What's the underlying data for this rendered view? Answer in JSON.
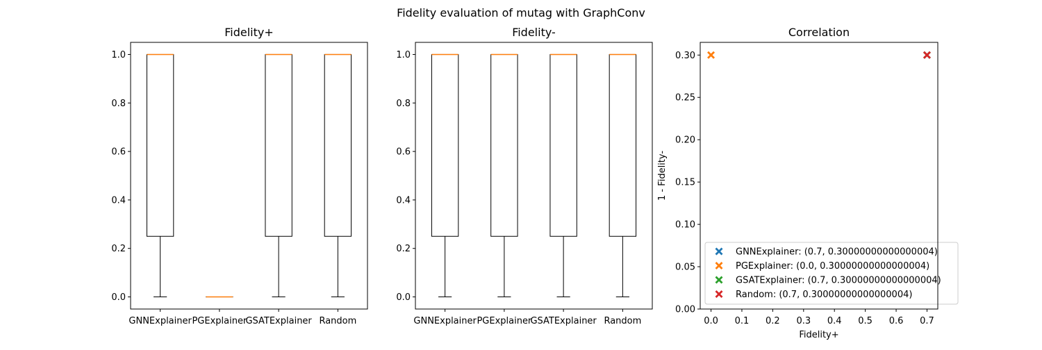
{
  "figure": {
    "suptitle": "Fidelity evaluation of mutag with GraphConv"
  },
  "chart_data": [
    {
      "type": "box",
      "title": "Fidelity+",
      "xlabel": "",
      "ylabel": "",
      "ylim": [
        -0.05,
        1.05
      ],
      "yticks": [
        0.0,
        0.2,
        0.4,
        0.6,
        0.8,
        1.0
      ],
      "ytick_labels": [
        "0.0",
        "0.2",
        "0.4",
        "0.6",
        "0.8",
        "1.0"
      ],
      "categories": [
        "GNNExplainer",
        "PGExplainer",
        "GSATExplainer",
        "Random"
      ],
      "boxes": [
        {
          "min": 0.0,
          "q1": 0.25,
          "median": 1.0,
          "q3": 1.0,
          "max": 1.0
        },
        {
          "min": 0.0,
          "q1": 0.0,
          "median": 0.0,
          "q3": 0.0,
          "max": 0.0
        },
        {
          "min": 0.0,
          "q1": 0.25,
          "median": 1.0,
          "q3": 1.0,
          "max": 1.0
        },
        {
          "min": 0.0,
          "q1": 0.25,
          "median": 1.0,
          "q3": 1.0,
          "max": 1.0
        }
      ]
    },
    {
      "type": "box",
      "title": "Fidelity-",
      "xlabel": "",
      "ylabel": "",
      "ylim": [
        -0.05,
        1.05
      ],
      "yticks": [
        0.0,
        0.2,
        0.4,
        0.6,
        0.8,
        1.0
      ],
      "ytick_labels": [
        "0.0",
        "0.2",
        "0.4",
        "0.6",
        "0.8",
        "1.0"
      ],
      "categories": [
        "GNNExplainer",
        "PGExplainer",
        "GSATExplainer",
        "Random"
      ],
      "boxes": [
        {
          "min": 0.0,
          "q1": 0.25,
          "median": 1.0,
          "q3": 1.0,
          "max": 1.0
        },
        {
          "min": 0.0,
          "q1": 0.25,
          "median": 1.0,
          "q3": 1.0,
          "max": 1.0
        },
        {
          "min": 0.0,
          "q1": 0.25,
          "median": 1.0,
          "q3": 1.0,
          "max": 1.0
        },
        {
          "min": 0.0,
          "q1": 0.25,
          "median": 1.0,
          "q3": 1.0,
          "max": 1.0
        }
      ]
    },
    {
      "type": "scatter",
      "title": "Correlation",
      "xlabel": "Fidelity+",
      "ylabel": "1 - Fidelity-",
      "xlim": [
        -0.035,
        0.735
      ],
      "ylim": [
        0.0,
        0.315
      ],
      "xticks": [
        0.0,
        0.1,
        0.2,
        0.3,
        0.4,
        0.5,
        0.6,
        0.7
      ],
      "xtick_labels": [
        "0.0",
        "0.1",
        "0.2",
        "0.3",
        "0.4",
        "0.5",
        "0.6",
        "0.7"
      ],
      "yticks": [
        0.0,
        0.05,
        0.1,
        0.15,
        0.2,
        0.25,
        0.3
      ],
      "ytick_labels": [
        "0.00",
        "0.05",
        "0.10",
        "0.15",
        "0.20",
        "0.25",
        "0.30"
      ],
      "marker": "X",
      "legend_position": "lower-right",
      "series": [
        {
          "name": "GNNExplainer: (0.7, 0.30000000000000004)",
          "x": 0.7,
          "y": 0.3,
          "color": "#1f77b4"
        },
        {
          "name": "PGExplainer: (0.0, 0.30000000000000004)",
          "x": 0.0,
          "y": 0.3,
          "color": "#ff7f0e"
        },
        {
          "name": "GSATExplainer: (0.7, 0.30000000000000004)",
          "x": 0.7,
          "y": 0.3,
          "color": "#2ca02c"
        },
        {
          "name": "Random: (0.7, 0.30000000000000004)",
          "x": 0.7,
          "y": 0.3,
          "color": "#d62728"
        }
      ]
    }
  ],
  "colors": {
    "median": "#ff7f0e",
    "box_edge": "#000000"
  }
}
